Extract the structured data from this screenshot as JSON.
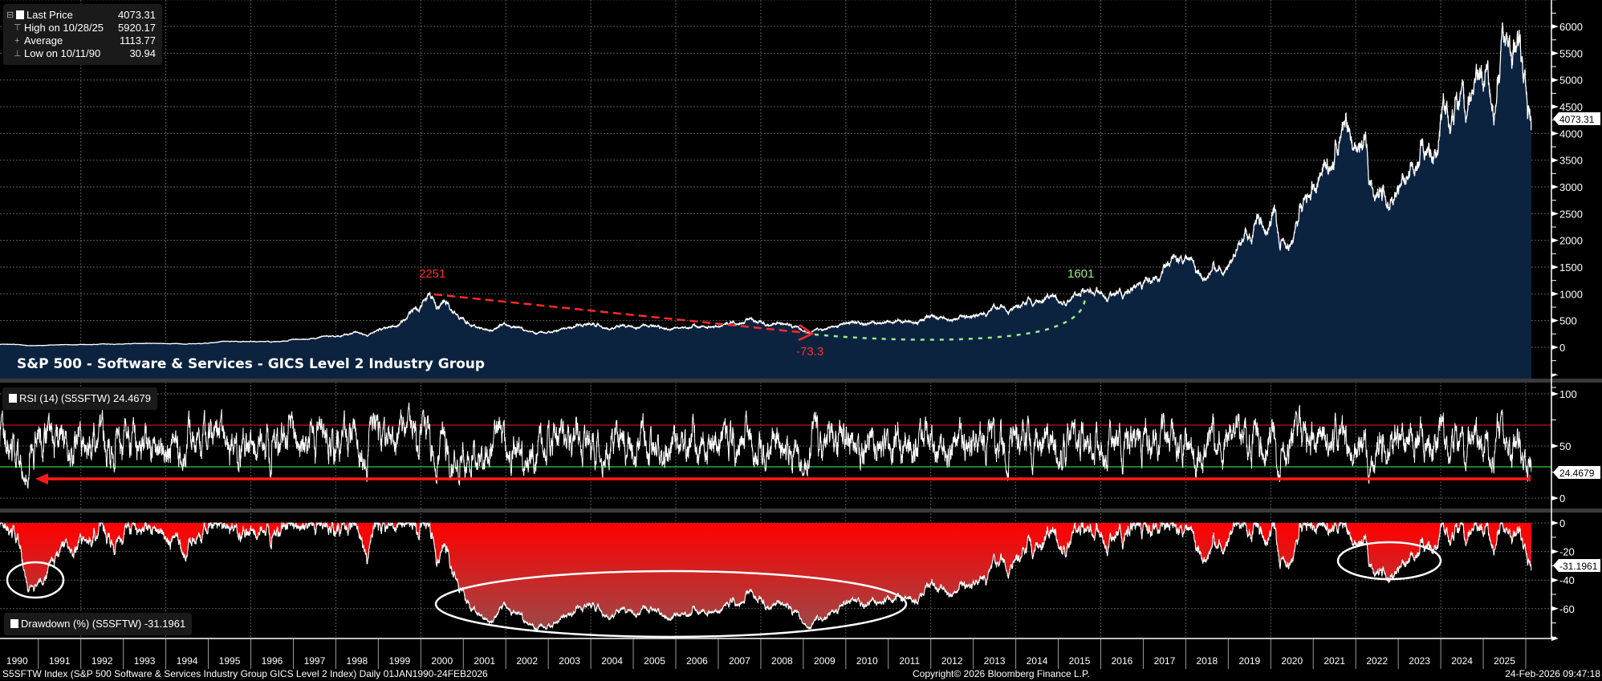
{
  "legend": {
    "rows": [
      {
        "label": "Last Price",
        "value": "4073.31"
      },
      {
        "label": "High on 10/28/25",
        "value": "5920.17"
      },
      {
        "label": "Average",
        "value": "1113.77"
      },
      {
        "label": "Low on 10/11/90",
        "value": "30.94"
      }
    ]
  },
  "title": "S&P 500 - Software & Services - GICS Level 2 Industry Group",
  "rsi_legend": "RSI (14) (S5SFTW) 24.4679",
  "drawdown_legend": "Drawdown (%) (S5SFTW) -31.1961",
  "annotations": {
    "peak_label": "2251",
    "trough_label": "-73.3",
    "recovery_label": "1601"
  },
  "footer": {
    "description": "S5SFTW Index (S&P 500 Software & Services Industry Group GICS Level 2 Index) Daily 01JAN1990-24FEB2026",
    "copyright": "Copyright© 2026 Bloomberg Finance L.P.",
    "timestamp": "24-Feb-2026 09:47:18"
  },
  "colors": {
    "price_line": "#ffffff",
    "price_fill": "#0c2340",
    "rsi_upper": "#cc1010",
    "rsi_lower": "#33cc44",
    "drawdown_fill": "#ff0000",
    "annotation_red": "#ff2a2a",
    "annotation_green": "#99ee88"
  },
  "chart_data": [
    {
      "type": "area",
      "name": "Last Price",
      "ylim": [
        0,
        6500
      ],
      "yticks": [
        "0",
        "500",
        "1000",
        "1500",
        "2000",
        "2500",
        "3000",
        "3500",
        "4000",
        "4500",
        "5000",
        "5500",
        "6000"
      ],
      "last_value_label": "4073.31",
      "grid": true,
      "price_anchors": [
        [
          "1990-01-02",
          50
        ],
        [
          "1990-06-01",
          57
        ],
        [
          "1990-10-11",
          31
        ],
        [
          "1991-06-01",
          45
        ],
        [
          "1992-01-01",
          55
        ],
        [
          "1993-01-01",
          58
        ],
        [
          "1994-01-01",
          70
        ],
        [
          "1994-06-01",
          60
        ],
        [
          "1995-01-01",
          75
        ],
        [
          "1996-01-01",
          110
        ],
        [
          "1996-07-01",
          95
        ],
        [
          "1997-01-01",
          150
        ],
        [
          "1997-10-01",
          210
        ],
        [
          "1998-01-01",
          200
        ],
        [
          "1998-07-01",
          290
        ],
        [
          "1998-10-05",
          210
        ],
        [
          "1999-01-01",
          330
        ],
        [
          "1999-07-01",
          420
        ],
        [
          "2000-03-20",
          1000
        ],
        [
          "2000-05-20",
          720
        ],
        [
          "2000-09-01",
          820
        ],
        [
          "2001-01-01",
          560
        ],
        [
          "2001-04-01",
          400
        ],
        [
          "2001-09-20",
          320
        ],
        [
          "2002-01-01",
          440
        ],
        [
          "2002-10-09",
          270
        ],
        [
          "2003-06-01",
          360
        ],
        [
          "2004-01-15",
          430
        ],
        [
          "2004-08-01",
          370
        ],
        [
          "2005-06-01",
          410
        ],
        [
          "2006-06-01",
          420
        ],
        [
          "2007-10-30",
          520
        ],
        [
          "2008-03-01",
          420
        ],
        [
          "2008-06-01",
          460
        ],
        [
          "2009-03-09",
          270
        ],
        [
          "2009-12-01",
          430
        ],
        [
          "2010-04-15",
          470
        ],
        [
          "2010-07-01",
          420
        ],
        [
          "2011-04-01",
          520
        ],
        [
          "2011-08-10",
          450
        ],
        [
          "2012-04-01",
          570
        ],
        [
          "2013-01-01",
          580
        ],
        [
          "2014-01-01",
          760
        ],
        [
          "2015-01-01",
          880
        ],
        [
          "2015-07-20",
          1000
        ],
        [
          "2016-02-10",
          920
        ],
        [
          "2017-01-01",
          1150
        ],
        [
          "2018-01-26",
          1680
        ],
        [
          "2018-12-24",
          1500
        ],
        [
          "2019-07-15",
          2050
        ],
        [
          "2020-02-19",
          2550
        ],
        [
          "2020-03-23",
          1850
        ],
        [
          "2020-12-31",
          2950
        ],
        [
          "2021-11-20",
          4000
        ],
        [
          "2022-06-15",
          2800
        ],
        [
          "2022-10-12",
          2650
        ],
        [
          "2023-03-15",
          3100
        ],
        [
          "2023-07-31",
          3800
        ],
        [
          "2023-10-26",
          3550
        ],
        [
          "2024-01-20",
          4500
        ],
        [
          "2024-04-19",
          4250
        ],
        [
          "2024-07-10",
          4950
        ],
        [
          "2024-08-05",
          4350
        ],
        [
          "2024-12-15",
          5200
        ],
        [
          "2025-01-15",
          4950
        ],
        [
          "2025-02-18",
          5150
        ],
        [
          "2025-04-08",
          4150
        ],
        [
          "2025-07-28",
          5800
        ],
        [
          "2025-08-30",
          5450
        ],
        [
          "2025-10-28",
          5920
        ],
        [
          "2025-12-31",
          5200
        ],
        [
          "2026-02-24",
          4073
        ]
      ]
    },
    {
      "type": "line",
      "name": "RSI (14) (S5SFTW)",
      "ylim": [
        -8,
        110
      ],
      "yticks": [
        "0",
        "50",
        "100"
      ],
      "reference_levels": [
        70,
        30
      ],
      "last_value_label": "24.4679",
      "grid": true
    },
    {
      "type": "area",
      "name": "Drawdown (%) (S5SFTW)",
      "ylim": [
        -80,
        0
      ],
      "yticks": [
        "0",
        "-20",
        "-40",
        "-60"
      ],
      "last_value_label": "-31.1961",
      "grid": true
    }
  ],
  "x_axis": {
    "labels": [
      "1990",
      "1991",
      "1992",
      "1993",
      "1994",
      "1995",
      "1996",
      "1997",
      "1998",
      "1999",
      "2000",
      "2001",
      "2002",
      "2003",
      "2004",
      "2005",
      "2006",
      "2007",
      "2008",
      "2009",
      "2010",
      "2011",
      "2012",
      "2013",
      "2014",
      "2015",
      "2016",
      "2017",
      "2018",
      "2019",
      "2020",
      "2021",
      "2022",
      "2023",
      "2024",
      "2025"
    ]
  }
}
